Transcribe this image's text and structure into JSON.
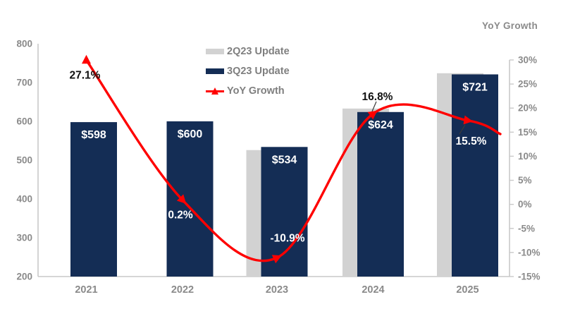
{
  "right_axis_title": "YoY Growth",
  "legend": {
    "items": [
      {
        "label": "2Q23 Update",
        "swatch": "bar-gray"
      },
      {
        "label": "3Q23 Update",
        "swatch": "bar-navy"
      },
      {
        "label": "YoY Growth",
        "swatch": "line-red"
      }
    ]
  },
  "colors": {
    "navy": "#142D55",
    "gray": "#D2D2D2",
    "red": "#FF0000",
    "axis_line": "#C9C9C9",
    "axis_text": "#8A8A8A",
    "label_black": "#111111",
    "label_white": "#FFFFFF",
    "leader": "#3a3a3a"
  },
  "chart_data": {
    "type": "combo",
    "categories": [
      "2021",
      "2022",
      "2023",
      "2024",
      "2025"
    ],
    "series": [
      {
        "name": "2Q23 Update",
        "type": "bar",
        "axis": "left",
        "values": [
          null,
          null,
          526,
          633,
          724
        ]
      },
      {
        "name": "3Q23 Update",
        "type": "bar",
        "axis": "left",
        "values": [
          598,
          600,
          534,
          624,
          721
        ],
        "labels": [
          "$598",
          "$600",
          "$534",
          "$624",
          "$721"
        ]
      },
      {
        "name": "YoY Growth",
        "type": "line",
        "axis": "right",
        "values": [
          27.1,
          0.2,
          -10.9,
          16.8,
          15.5
        ],
        "labels": [
          "27.1%",
          "0.2%",
          "-10.9%",
          "16.8%",
          "15.5%"
        ],
        "label_colors": [
          "black",
          "white",
          "white",
          "black",
          "white"
        ]
      }
    ],
    "left_axis": {
      "min": 200,
      "max": 800,
      "step": 100,
      "ticks": [
        "800",
        "700",
        "600",
        "500",
        "400",
        "300",
        "200"
      ]
    },
    "right_axis": {
      "min": -15,
      "max": 30,
      "step": 5,
      "title": "YoY Growth",
      "ticks": [
        "30%",
        "25%",
        "20%",
        "15%",
        "10%",
        "5%",
        "0%",
        "-5%",
        "-10%",
        "-15%"
      ]
    },
    "legend_position": "top-center",
    "grid": "off"
  }
}
